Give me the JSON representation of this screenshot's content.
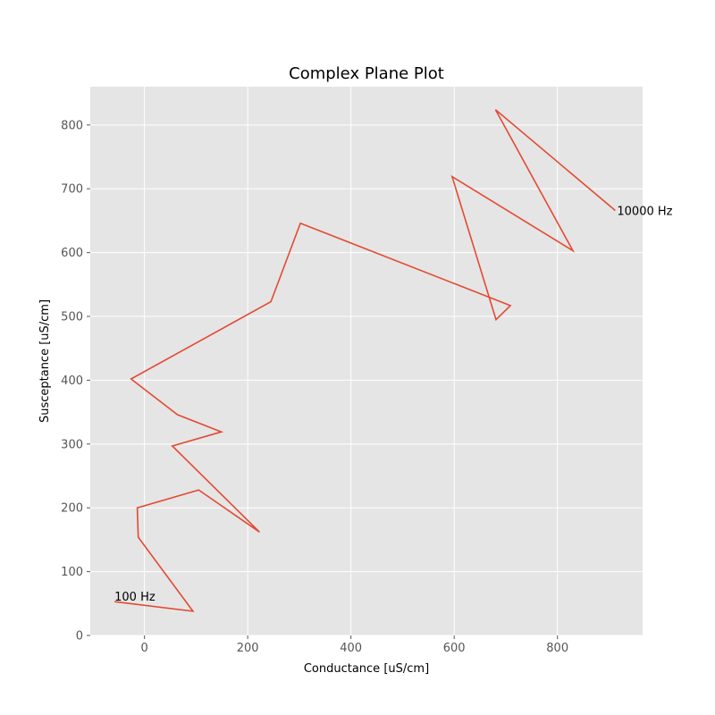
{
  "chart_data": {
    "type": "line",
    "title": "Complex Plane Plot",
    "xlabel": "Conductance [uS/cm]",
    "ylabel": "Susceptance [uS/cm]",
    "xlim": [
      -105,
      965
    ],
    "ylim": [
      0,
      860
    ],
    "xticks": [
      0,
      200,
      400,
      600,
      800
    ],
    "yticks": [
      0,
      100,
      200,
      300,
      400,
      500,
      600,
      700,
      800
    ],
    "grid": true,
    "series": [
      {
        "color": "#E24A33",
        "x": [
          -58,
          94,
          -12,
          -14,
          105,
          223,
          54,
          149,
          64,
          -26,
          245,
          302,
          709,
          681,
          596,
          830,
          680,
          912
        ],
        "y": [
          53,
          38,
          154,
          200,
          228,
          162,
          297,
          319,
          346,
          402,
          523,
          646,
          517,
          495,
          719,
          603,
          824,
          666
        ]
      }
    ],
    "annotations": [
      {
        "text": "100 Hz",
        "x": -58,
        "y": 53,
        "align": "start",
        "dy": -1
      },
      {
        "text": "10000 Hz",
        "x": 912,
        "y": 666,
        "align": "start",
        "dx": 2,
        "dy": 5
      }
    ]
  }
}
